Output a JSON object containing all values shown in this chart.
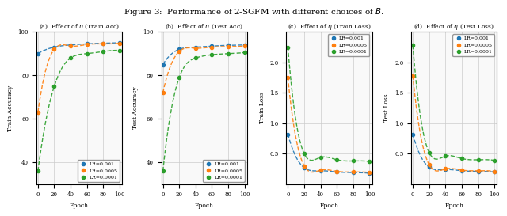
{
  "title": "Figure 3:  Performance of 2-SGFM with different choices of $B$.",
  "figure_size": [
    6.4,
    2.73
  ],
  "dpi": 100,
  "epochs": [
    0,
    20,
    40,
    60,
    80,
    100
  ],
  "epochs_fine": 100,
  "lr_labels": [
    "LR=0.001",
    "LR=0.0005",
    "LR=0.0001"
  ],
  "lr_colors": [
    "#1f77b4",
    "#ff7f0e",
    "#2ca02c"
  ],
  "lr_styles": [
    "--",
    "--",
    "--"
  ],
  "lr_markers": [
    "o",
    "o",
    "o"
  ],
  "train_acc": {
    "lr001": [
      90,
      93,
      94,
      94.5,
      94.8,
      95.0
    ],
    "lr0005": [
      63,
      92,
      93.5,
      94.2,
      94.5,
      94.8
    ],
    "lr0001": [
      36,
      75,
      88,
      90,
      91,
      91.5
    ]
  },
  "test_acc": {
    "lr001": [
      85,
      92,
      93,
      93.5,
      93.8,
      94.0
    ],
    "lr0005": [
      72,
      91,
      92.5,
      93.0,
      93.2,
      93.5
    ],
    "lr0001": [
      36,
      79,
      88,
      89.5,
      90,
      90.5
    ]
  },
  "train_loss": {
    "lr001": [
      0.82,
      0.27,
      0.22,
      0.2,
      0.19,
      0.18
    ],
    "lr0005": [
      1.75,
      0.3,
      0.23,
      0.21,
      0.2,
      0.19
    ],
    "lr0001": [
      2.25,
      0.5,
      0.44,
      0.4,
      0.38,
      0.37
    ]
  },
  "test_loss": {
    "lr001": [
      0.82,
      0.28,
      0.24,
      0.22,
      0.21,
      0.2
    ],
    "lr0005": [
      1.78,
      0.32,
      0.25,
      0.23,
      0.22,
      0.21
    ],
    "lr0001": [
      2.28,
      0.52,
      0.46,
      0.42,
      0.4,
      0.39
    ]
  },
  "subplot_titles": [
    "(a)  Effect of $\\eta$ (Train Acc)",
    "(b)  Effect of $\\eta$ (Test Acc)",
    "(c)  Effect of $\\eta$ (Train Loss)",
    "(d)  Effect of $\\eta$ (Test Loss)"
  ],
  "ylabel_acc": [
    "Train Accuracy",
    "Test Accuracy"
  ],
  "ylabel_loss": [
    "Train Loss",
    "Test Loss"
  ],
  "xlabel": "Epoch",
  "acc_ylim": [
    30,
    100
  ],
  "loss_ylim": [
    0,
    2.5
  ],
  "acc_yticks": [
    40,
    60,
    80,
    100
  ],
  "loss_yticks": [
    0.5,
    1.0,
    1.5,
    2.0
  ],
  "xticks": [
    0,
    20,
    40,
    60,
    80,
    100
  ],
  "background_color": "#f9f9f9",
  "grid_color": "#cccccc"
}
